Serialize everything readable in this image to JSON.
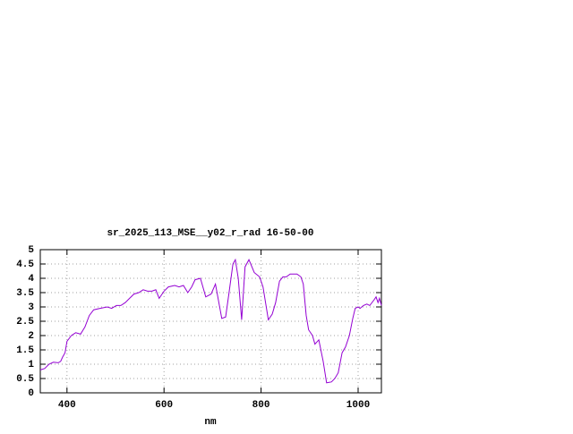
{
  "chart_data": {
    "type": "line",
    "title": "sr_2025_113_MSE__y02_r_rad 16-50-00",
    "x_label": "nm",
    "color": "#9400d3",
    "grid": true,
    "xlim": [
      345,
      1048
    ],
    "ylim": [
      0,
      5
    ],
    "xticks": [
      400,
      600,
      800,
      1000
    ],
    "yticks": [
      0,
      0.5,
      1,
      1.5,
      2,
      2.5,
      3,
      3.5,
      4,
      4.5,
      5
    ],
    "x": [
      345,
      354,
      363,
      372,
      382,
      387,
      391,
      396,
      400,
      409,
      418,
      428,
      437,
      446,
      455,
      468,
      483,
      492,
      502,
      511,
      520,
      529,
      538,
      548,
      557,
      566,
      575,
      583,
      590,
      600,
      609,
      622,
      631,
      640,
      649,
      657,
      664,
      675,
      686,
      697,
      706,
      719,
      727,
      734,
      742,
      747,
      753,
      760,
      767,
      775,
      786,
      797,
      804,
      815,
      823,
      830,
      838,
      845,
      852,
      860,
      874,
      882,
      887,
      893,
      898,
      906,
      911,
      919,
      928,
      935,
      945,
      952,
      959,
      967,
      974,
      982,
      989,
      994,
      1000,
      1004,
      1011,
      1018,
      1024,
      1033,
      1037,
      1041,
      1044,
      1048
    ],
    "values": [
      0.8,
      0.85,
      1.0,
      1.07,
      1.05,
      1.1,
      1.25,
      1.4,
      1.8,
      2.0,
      2.1,
      2.05,
      2.3,
      2.7,
      2.9,
      2.95,
      3.0,
      2.95,
      3.05,
      3.05,
      3.15,
      3.3,
      3.45,
      3.5,
      3.6,
      3.55,
      3.55,
      3.6,
      3.3,
      3.55,
      3.7,
      3.75,
      3.7,
      3.75,
      3.5,
      3.7,
      3.95,
      4.0,
      3.35,
      3.45,
      3.8,
      2.6,
      2.65,
      3.5,
      4.5,
      4.65,
      4.0,
      2.55,
      4.4,
      4.65,
      4.2,
      4.05,
      3.7,
      2.55,
      2.75,
      3.15,
      3.9,
      4.05,
      4.05,
      4.15,
      4.15,
      4.05,
      3.8,
      2.7,
      2.2,
      2.0,
      1.7,
      1.85,
      1.1,
      0.35,
      0.38,
      0.5,
      0.7,
      1.4,
      1.6,
      2.0,
      2.6,
      2.95,
      3.0,
      2.95,
      3.05,
      3.1,
      3.05,
      3.25,
      3.35,
      3.15,
      3.3,
      3.05
    ]
  }
}
